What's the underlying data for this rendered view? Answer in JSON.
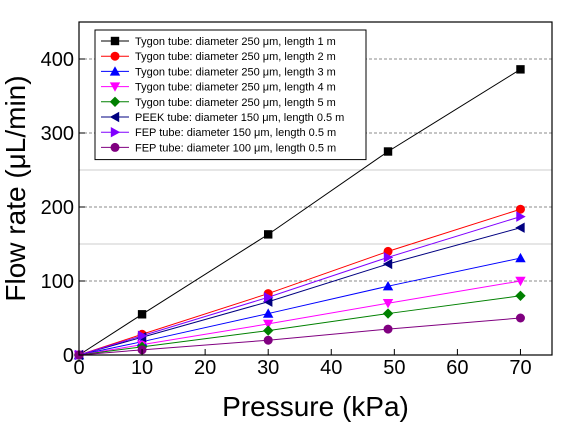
{
  "chart_data": {
    "type": "line",
    "title": "",
    "xlabel": "Pressure (kPa)",
    "ylabel": "Flow rate (μL/min)",
    "xlim": [
      0,
      75
    ],
    "ylim": [
      0,
      450
    ],
    "xticks": [
      0,
      10,
      20,
      30,
      40,
      50,
      60,
      70
    ],
    "yticks": [
      0,
      100,
      200,
      300,
      400
    ],
    "grid": "horizontal dashed",
    "legend_position": "top-left",
    "x": [
      0,
      10,
      30,
      49,
      70
    ],
    "series": [
      {
        "name": "Tygon tube: diameter 250 μm, length 1 m",
        "marker": "square",
        "color": "#000000",
        "values": [
          0,
          55,
          163,
          275,
          386
        ]
      },
      {
        "name": "Tygon tube: diameter 250 μm, length 2 m",
        "marker": "circle",
        "color": "#ff0000",
        "values": [
          0,
          28,
          83,
          140,
          197
        ]
      },
      {
        "name": "Tygon tube: diameter 250 μm, length 3 m",
        "marker": "triangle-up",
        "color": "#0000ff",
        "values": [
          0,
          18,
          56,
          93,
          131
        ]
      },
      {
        "name": "Tygon tube: diameter 250 μm, length 4 m",
        "marker": "triangle-down",
        "color": "#ff00ff",
        "values": [
          0,
          14,
          42,
          70,
          100
        ]
      },
      {
        "name": "Tygon tube: diameter 250 μm, length 5 m",
        "marker": "diamond",
        "color": "#008000",
        "values": [
          0,
          11,
          33,
          56,
          80
        ]
      },
      {
        "name": "PEEK tube: diameter 150 μm, length 0.5 m",
        "marker": "triangle-left",
        "color": "#000080",
        "values": [
          0,
          24,
          72,
          123,
          172
        ]
      },
      {
        "name": "FEP tube: diameter 150 μm, length 0.5 m",
        "marker": "triangle-right",
        "color": "#8000ff",
        "values": [
          0,
          26,
          78,
          132,
          187
        ]
      },
      {
        "name": "FEP tube: diameter 100 μm, length 0.5 m",
        "marker": "circle",
        "color": "#800080",
        "values": [
          0,
          7,
          20,
          35,
          50
        ]
      }
    ]
  }
}
